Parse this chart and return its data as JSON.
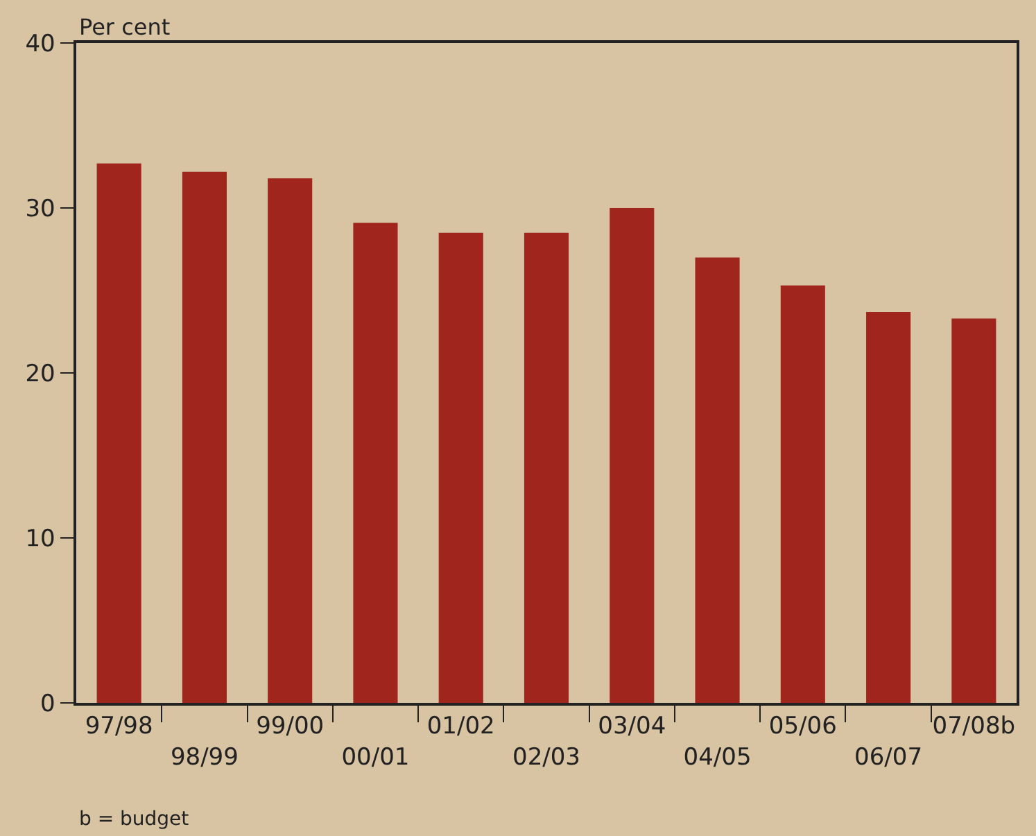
{
  "chart_data": {
    "type": "bar",
    "ylabel": "Per cent",
    "categories": [
      "97/98",
      "98/99",
      "99/00",
      "00/01",
      "01/02",
      "02/03",
      "03/04",
      "04/05",
      "05/06",
      "06/07",
      "07/08b"
    ],
    "values": [
      32.7,
      32.2,
      31.8,
      29.1,
      28.5,
      28.5,
      30.0,
      27.0,
      25.3,
      23.7,
      23.3
    ],
    "color": "#a0251c",
    "ylim": [
      0,
      40
    ],
    "yticks": [
      0,
      10,
      20,
      30,
      40
    ],
    "grid": false,
    "legend": false,
    "annotations": [
      "b = budget"
    ]
  }
}
